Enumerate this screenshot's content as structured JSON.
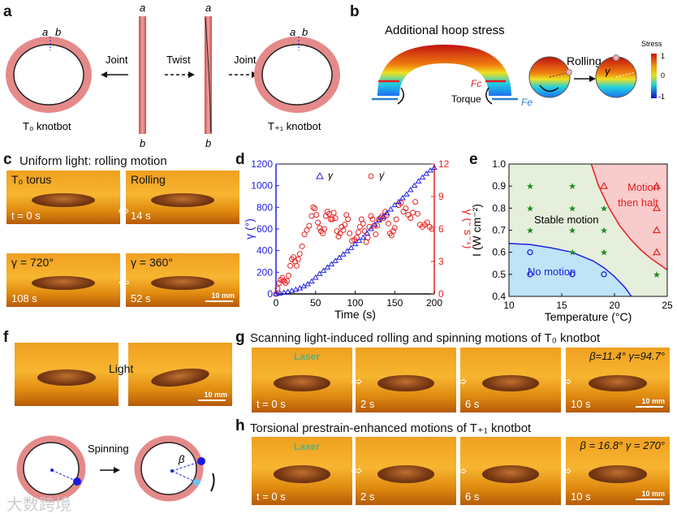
{
  "panel_labels": [
    "a",
    "b",
    "c",
    "d",
    "e",
    "f",
    "g",
    "h"
  ],
  "a": {
    "end_a": "a",
    "end_b": "b",
    "joint1": "Joint",
    "twist": "Twist",
    "joint2": "Joint",
    "t0": "T₀ knotbot",
    "t1": "T₊₁ knotbot"
  },
  "b": {
    "title": "Additional hoop stress",
    "fc": "Fc",
    "fe": "Fe",
    "torque": "Torque",
    "rolling": "Rolling",
    "gamma": "γ",
    "colorbar_title": "Stress",
    "colorbar_ticks": [
      "1",
      "0",
      "-1"
    ]
  },
  "c": {
    "title": "Uniform light: rolling motion",
    "photos": [
      {
        "tl": "T₀ torus",
        "cap": "t = 0 s"
      },
      {
        "tl": "Rolling",
        "cap": "14 s"
      },
      {
        "tl": "γ = 720°",
        "cap": "108 s"
      },
      {
        "tl": "γ = 360°",
        "cap": "52 s",
        "scale": "10 mm"
      }
    ]
  },
  "f": {
    "light": "Light",
    "scale": "10 mm",
    "spinning": "Spinning",
    "beta": "β"
  },
  "g": {
    "title": "Scanning light-induced rolling and spinning motions of T₀ knotbot",
    "laser": "Laser",
    "photos": [
      {
        "cap": "t = 0 s"
      },
      {
        "cap": "2 s"
      },
      {
        "cap": "6 s"
      },
      {
        "cap": "10 s",
        "tr": "β=11.4°  γ=94.7°",
        "scale": "10 mm"
      }
    ]
  },
  "h": {
    "title": "Torsional prestrain-enhanced motions of T₊₁ knotbot",
    "laser": "Laser",
    "photos": [
      {
        "cap": "t = 0 s"
      },
      {
        "cap": "2 s"
      },
      {
        "cap": "6 s"
      },
      {
        "cap": "10 s",
        "tr": "β = 16.8°   γ = 270°",
        "scale": "10 mm"
      }
    ]
  },
  "watermark": "大数跨境",
  "colors": {
    "blue": "#2020e0",
    "red": "#e82020",
    "green": "#1a8a1a",
    "stable_bg": "#e6efdc",
    "nomotion_bg": "#bfe3f7",
    "halt_bg": "#f8cccc"
  },
  "chart_data": [
    {
      "type": "scatter",
      "xlabel": "Time (s)",
      "ylabel": "γ (°)",
      "y2label": "γ̇ (° s⁻¹)",
      "xlim": [
        0,
        200
      ],
      "ylim": [
        0,
        1200
      ],
      "y2lim": [
        0,
        12
      ],
      "xticks": [
        0,
        50,
        100,
        150,
        200
      ],
      "yticks": [
        0,
        200,
        400,
        600,
        800,
        1000,
        1200
      ],
      "y2ticks": [
        0,
        3,
        6,
        9,
        12
      ],
      "legend": [
        "γ",
        "γ̇"
      ],
      "legend_position": "top",
      "series": [
        {
          "name": "γ",
          "axis": "left",
          "marker": "triangle",
          "x": [
            0,
            5,
            10,
            15,
            20,
            25,
            30,
            35,
            40,
            45,
            50,
            55,
            60,
            65,
            70,
            75,
            80,
            85,
            90,
            95,
            100,
            105,
            110,
            115,
            120,
            125,
            130,
            135,
            140,
            145,
            150,
            155,
            160,
            165,
            170,
            175,
            180,
            185,
            190,
            195,
            200
          ],
          "y": [
            0,
            5,
            12,
            20,
            28,
            40,
            52,
            70,
            90,
            115,
            150,
            185,
            215,
            245,
            275,
            305,
            335,
            365,
            395,
            425,
            460,
            490,
            520,
            560,
            600,
            640,
            680,
            710,
            745,
            780,
            820,
            850,
            885,
            920,
            960,
            1000,
            1040,
            1075,
            1110,
            1140,
            1165
          ]
        },
        {
          "name": "γ̇",
          "axis": "right",
          "marker": "circle",
          "x": [
            0,
            2,
            4,
            6,
            8,
            10,
            12,
            14,
            16,
            18,
            20,
            22,
            24,
            26,
            28,
            30,
            33,
            36,
            39,
            42,
            45,
            47,
            49,
            51,
            53,
            55,
            57,
            59,
            61,
            63,
            65,
            67,
            69,
            71,
            73,
            75,
            77,
            79,
            81,
            83,
            85,
            87,
            89,
            91,
            93,
            96,
            99,
            102,
            104,
            106,
            108,
            110,
            112,
            114,
            116,
            118,
            120,
            122,
            124,
            126,
            128,
            130,
            132,
            134,
            136,
            138,
            140,
            142,
            144,
            146,
            148,
            150,
            152,
            155,
            158,
            161,
            164,
            167,
            170,
            173,
            176,
            179,
            182,
            185,
            188,
            191,
            194,
            197
          ],
          "y": [
            0,
            0.5,
            1,
            1.3,
            1.5,
            1.2,
            1,
            1.2,
            1.7,
            2.6,
            3.2,
            3.4,
            3,
            2.6,
            3.2,
            3.7,
            4.4,
            5.5,
            5.9,
            6.3,
            7.2,
            8,
            7.9,
            7.3,
            6.6,
            6.1,
            5.8,
            5.6,
            6,
            7.2,
            7.6,
            7.4,
            6.9,
            6.9,
            7.5,
            7,
            5.8,
            5.3,
            5.6,
            6.2,
            5.9,
            6.4,
            7.3,
            6.9,
            5.6,
            4.9,
            5,
            5.2,
            5.7,
            6.2,
            6.9,
            6.5,
            5.8,
            4.8,
            5.2,
            6.2,
            7.2,
            6.9,
            6.3,
            5.5,
            6.3,
            6.9,
            7,
            7.2,
            7,
            7.6,
            7.3,
            6.5,
            5.6,
            5.4,
            5.8,
            6.1,
            6.9,
            8.2,
            8.4,
            7.6,
            7.9,
            7.3,
            7,
            7.5,
            8.5,
            7.4,
            6.4,
            6.2,
            6.4,
            6.6,
            6.2,
            6
          ]
        }
      ]
    },
    {
      "type": "scatter",
      "xlabel": "Temperature (°C)",
      "ylabel": "I (W cm⁻²)",
      "xlim": [
        10,
        25
      ],
      "ylim": [
        0.4,
        1.0
      ],
      "xticks": [
        10,
        15,
        20,
        25
      ],
      "yticks": [
        0.4,
        0.5,
        0.6,
        0.7,
        0.8,
        0.9,
        1.0
      ],
      "regions": [
        {
          "name": "Stable motion"
        },
        {
          "name": "No motion"
        },
        {
          "name": "Motion then halt",
          "label_lines": [
            "Motion",
            "then halt"
          ]
        }
      ],
      "boundaries": [
        {
          "name": "no-motion boundary",
          "x": [
            10,
            12,
            14,
            16,
            18,
            19,
            20,
            21,
            21.6
          ],
          "y": [
            0.64,
            0.635,
            0.62,
            0.6,
            0.56,
            0.53,
            0.49,
            0.44,
            0.4
          ]
        },
        {
          "name": "halt boundary",
          "x": [
            17.8,
            18.5,
            19.5,
            20.5,
            21.5,
            22.5,
            23.5,
            25
          ],
          "y": [
            1.0,
            0.9,
            0.8,
            0.72,
            0.66,
            0.61,
            0.57,
            0.52
          ]
        }
      ],
      "series": [
        {
          "name": "Stable motion",
          "marker": "star",
          "x": [
            12,
            12,
            12,
            16,
            16,
            16,
            16,
            19,
            19,
            19,
            24
          ],
          "y": [
            0.9,
            0.8,
            0.7,
            0.9,
            0.8,
            0.7,
            0.6,
            0.8,
            0.7,
            0.6,
            0.5
          ]
        },
        {
          "name": "No motion",
          "marker": "circle",
          "x": [
            12,
            12,
            16,
            19
          ],
          "y": [
            0.6,
            0.5,
            0.5,
            0.5
          ]
        },
        {
          "name": "Motion then halt",
          "marker": "triangle",
          "x": [
            19,
            24,
            24,
            24,
            24
          ],
          "y": [
            0.9,
            0.9,
            0.8,
            0.7,
            0.6
          ]
        }
      ]
    }
  ]
}
